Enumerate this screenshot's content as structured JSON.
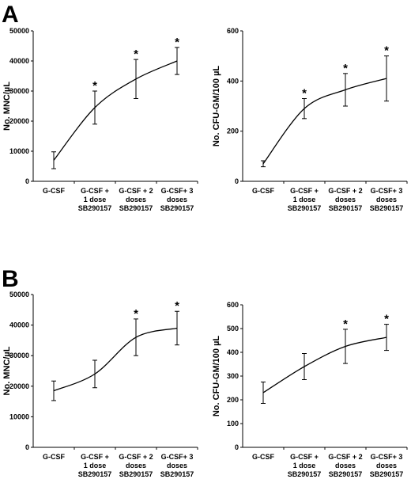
{
  "panels": [
    {
      "letter": "A"
    },
    {
      "letter": "B"
    }
  ],
  "chart_data": [
    {
      "type": "line",
      "panel": "A",
      "ylabel": "No. MNC/µL",
      "ylim": [
        0,
        50000
      ],
      "yticks": [
        "0",
        "10000",
        "20000",
        "30000",
        "40000",
        "50000"
      ],
      "categories": [
        [
          "G-CSF"
        ],
        [
          "G-CSF +",
          "1 dose",
          "SB290157"
        ],
        [
          "G-CSF + 2",
          "doses",
          "SB290157"
        ],
        [
          "G-CSF+ 3",
          "doses",
          "SB290157"
        ]
      ],
      "values": [
        7000,
        24500,
        34000,
        40000
      ],
      "errors": [
        2800,
        5500,
        6500,
        4500
      ],
      "significant": [
        false,
        true,
        true,
        true
      ],
      "star": "*"
    },
    {
      "type": "line",
      "panel": "A",
      "ylabel": "No. CFU-GM/100 µL",
      "ylim": [
        0,
        600
      ],
      "yticks": [
        "0",
        "200",
        "400",
        "600"
      ],
      "categories": [
        [
          "G-CSF"
        ],
        [
          "G-CSF +",
          "1 dose",
          "SB290157"
        ],
        [
          "G-CSF + 2",
          "doses",
          "SB290157"
        ],
        [
          "G-CSF+ 3",
          "doses",
          "SB290157"
        ]
      ],
      "values": [
        70,
        290,
        365,
        410
      ],
      "errors": [
        12,
        40,
        65,
        90
      ],
      "significant": [
        false,
        true,
        true,
        true
      ],
      "star": "*"
    },
    {
      "type": "line",
      "panel": "B",
      "ylabel": "No. MNC/µL",
      "ylim": [
        0,
        50000
      ],
      "yticks": [
        "0",
        "10000",
        "20000",
        "30000",
        "40000",
        "50000"
      ],
      "categories": [
        [
          "G-CSF"
        ],
        [
          "G-CSF +",
          "1 dose",
          "SB290157"
        ],
        [
          "G-CSF + 2",
          "doses",
          "SB290157"
        ],
        [
          "G-CSF+ 3",
          "doses",
          "SB290157"
        ]
      ],
      "values": [
        18500,
        24000,
        36000,
        39000
      ],
      "errors": [
        3200,
        4500,
        6000,
        5500
      ],
      "significant": [
        false,
        false,
        true,
        true
      ],
      "star": "*"
    },
    {
      "type": "line",
      "panel": "B",
      "ylabel": "No. CFU-GM/100 µL",
      "ylim": [
        0,
        600
      ],
      "yticks": [
        "0",
        "100",
        "200",
        "300",
        "400",
        "500",
        "600"
      ],
      "categories": [
        [
          "G-CSF"
        ],
        [
          "G-CSF +",
          "1 dose",
          "SB290157"
        ],
        [
          "G-CSF + 2",
          "doses",
          "SB290157"
        ],
        [
          "G-CSF+ 3",
          "doses",
          "SB290157"
        ]
      ],
      "values": [
        230,
        340,
        425,
        463
      ],
      "errors": [
        45,
        55,
        72,
        55
      ],
      "significant": [
        false,
        false,
        true,
        true
      ],
      "star": "*"
    }
  ]
}
